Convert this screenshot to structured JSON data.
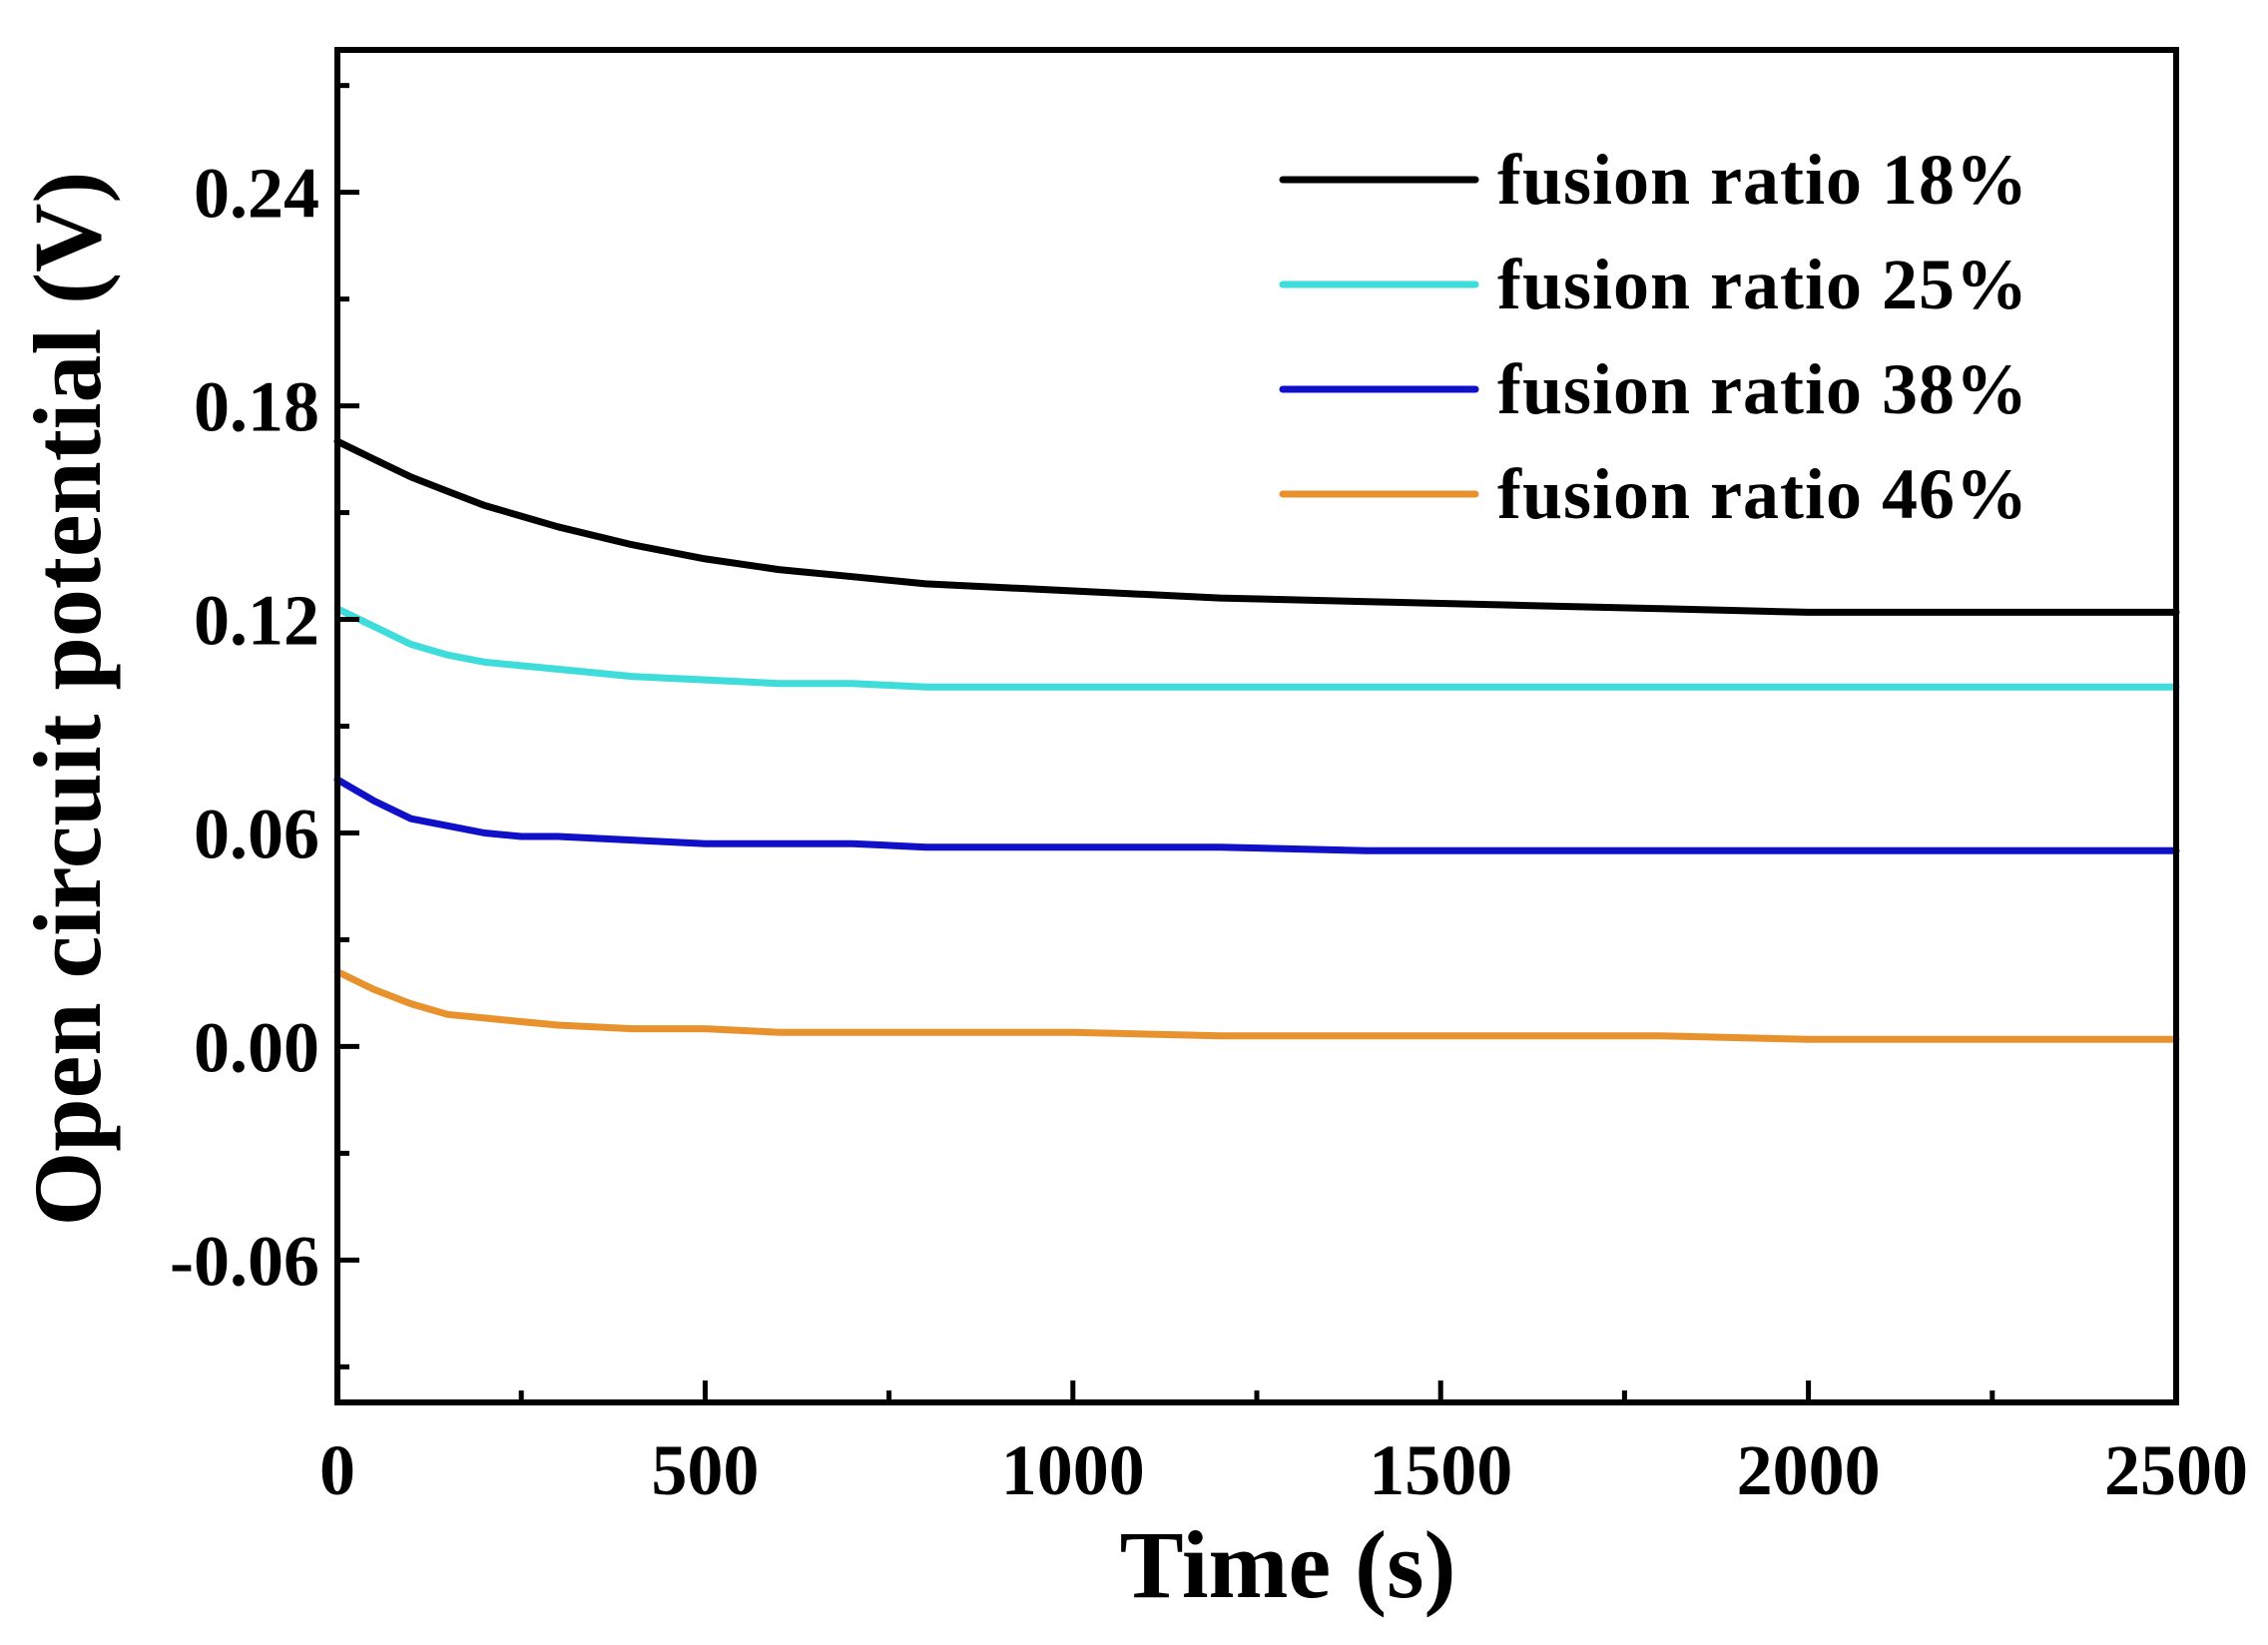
{
  "chart_data": {
    "type": "line",
    "title": "",
    "xlabel": "Time (s)",
    "ylabel": "Open circuit potential (V)",
    "xlim": [
      0,
      2500
    ],
    "ylim": [
      -0.1,
      0.28
    ],
    "xticks": [
      0,
      500,
      1000,
      1500,
      2000,
      2500
    ],
    "xtick_labels": [
      "0",
      "500",
      "1000",
      "1500",
      "2000",
      "2500"
    ],
    "yticks": [
      -0.06,
      0.0,
      0.06,
      0.12,
      0.18,
      0.24
    ],
    "ytick_labels": [
      "-0.06",
      "0.00",
      "0.06",
      "0.12",
      "0.18",
      "0.24"
    ],
    "grid": false,
    "legend_position": "top-right",
    "x": [
      0,
      50,
      100,
      150,
      200,
      250,
      300,
      400,
      500,
      600,
      700,
      800,
      1000,
      1200,
      1400,
      1600,
      1800,
      2000,
      2200,
      2500
    ],
    "series": [
      {
        "name": "fusion ratio 18%",
        "color": "#000000",
        "values": [
          0.17,
          0.165,
          0.16,
          0.156,
          0.152,
          0.149,
          0.146,
          0.141,
          0.137,
          0.134,
          0.132,
          0.13,
          0.128,
          0.126,
          0.125,
          0.124,
          0.123,
          0.122,
          0.122,
          0.122
        ]
      },
      {
        "name": "fusion ratio 25%",
        "color": "#3fdcdc",
        "values": [
          0.123,
          0.118,
          0.113,
          0.11,
          0.108,
          0.107,
          0.106,
          0.104,
          0.103,
          0.102,
          0.102,
          0.101,
          0.101,
          0.101,
          0.101,
          0.101,
          0.101,
          0.101,
          0.101,
          0.101
        ]
      },
      {
        "name": "fusion ratio 38%",
        "color": "#1010c8",
        "values": [
          0.075,
          0.069,
          0.064,
          0.062,
          0.06,
          0.059,
          0.059,
          0.058,
          0.057,
          0.057,
          0.057,
          0.056,
          0.056,
          0.056,
          0.055,
          0.055,
          0.055,
          0.055,
          0.055,
          0.055
        ]
      },
      {
        "name": "fusion ratio 46%",
        "color": "#e8922e",
        "values": [
          0.021,
          0.016,
          0.012,
          0.009,
          0.008,
          0.007,
          0.006,
          0.005,
          0.005,
          0.004,
          0.004,
          0.004,
          0.004,
          0.003,
          0.003,
          0.003,
          0.003,
          0.002,
          0.002,
          0.002
        ]
      }
    ]
  }
}
